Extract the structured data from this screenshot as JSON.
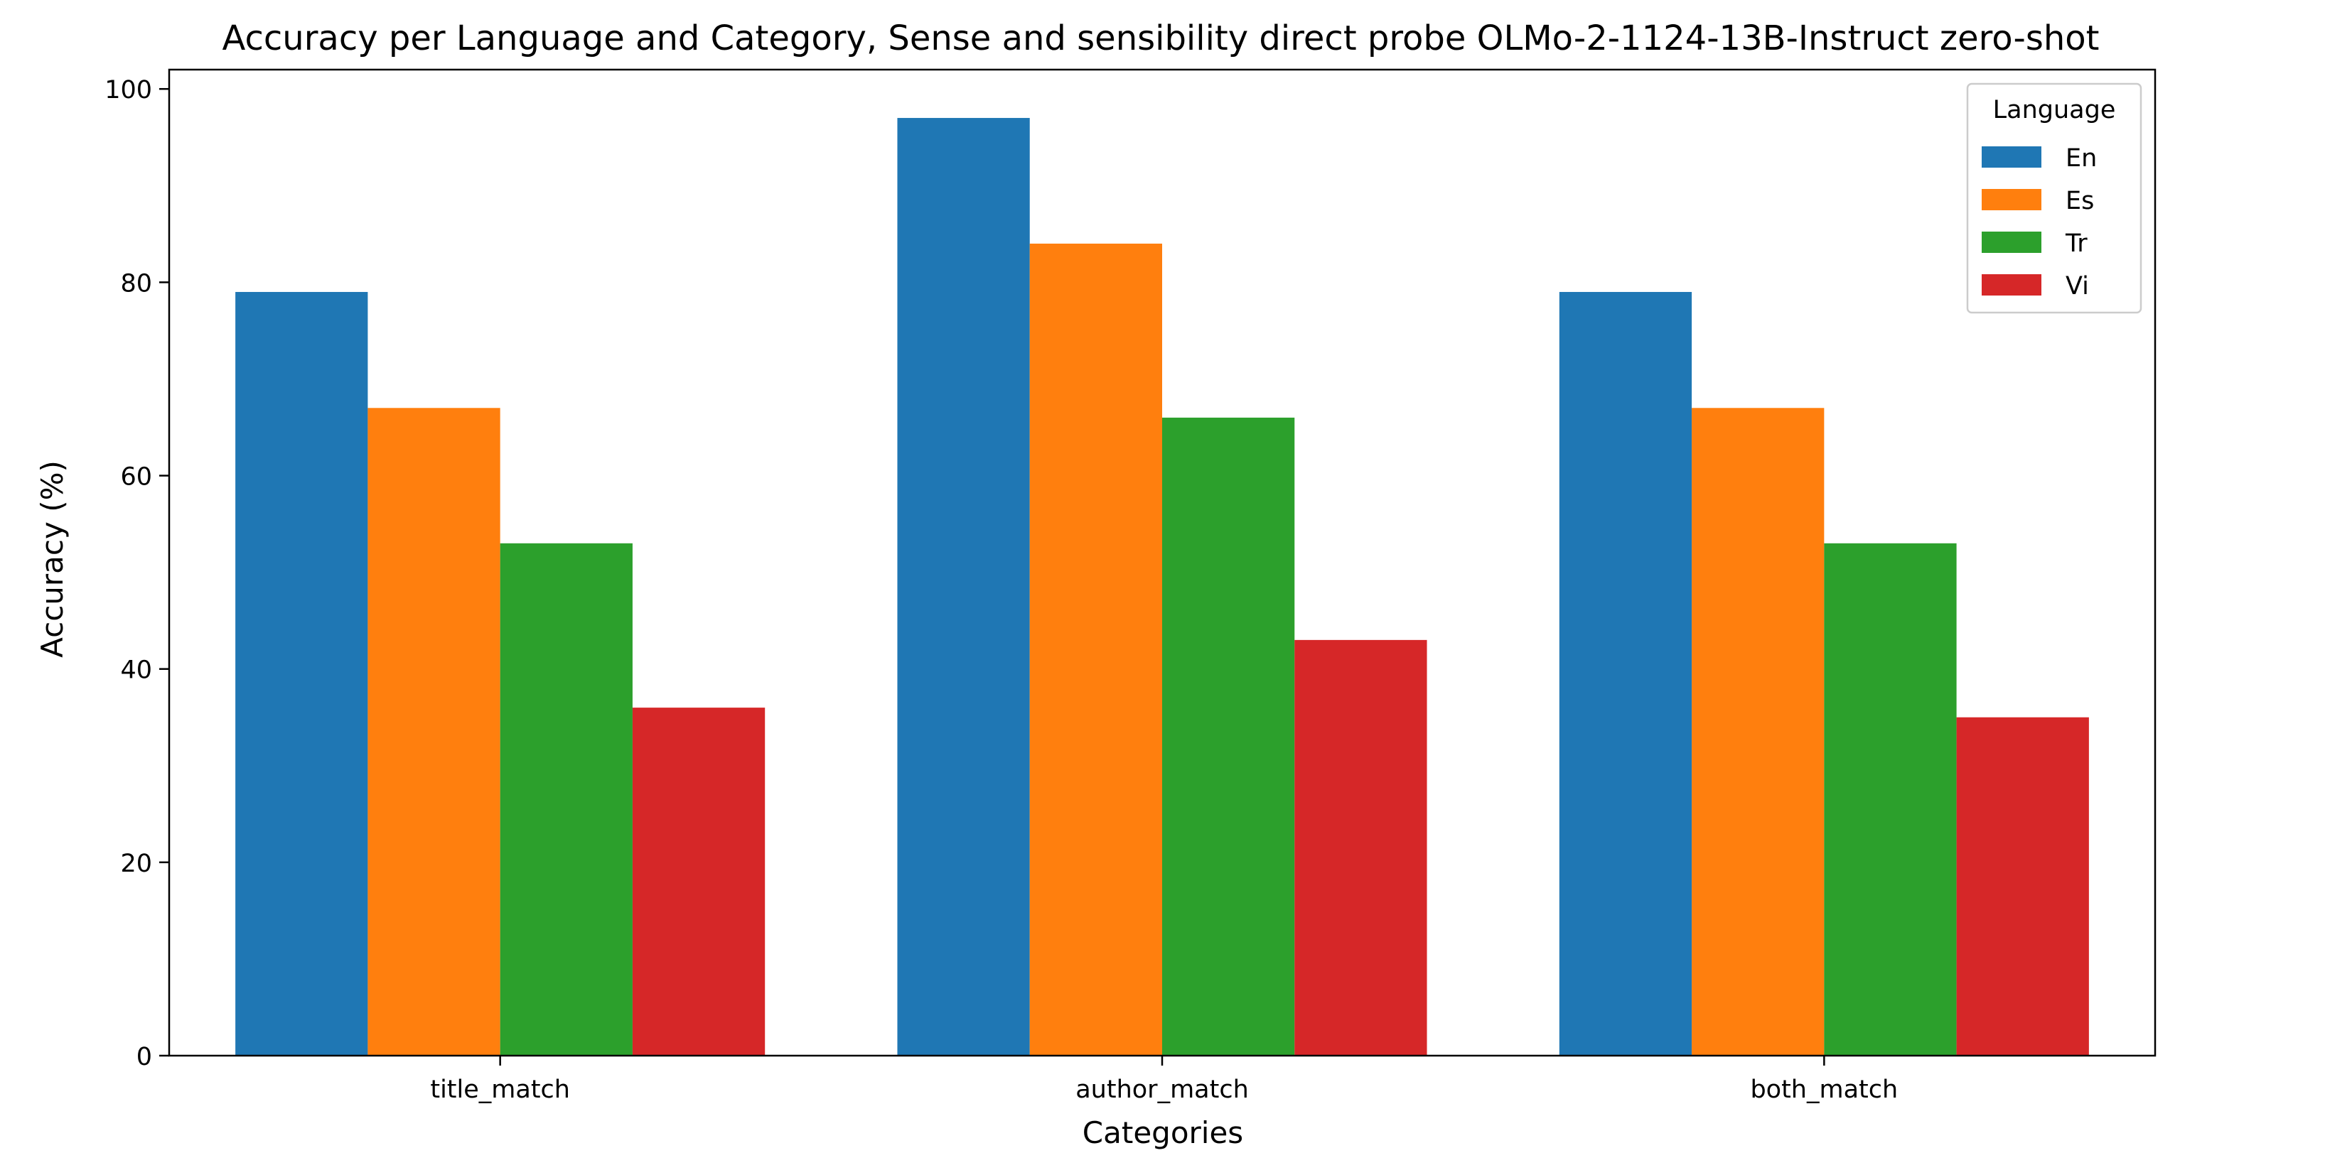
{
  "chart_data": {
    "type": "bar",
    "title": "Accuracy per Language and Category, Sense and sensibility direct probe OLMo-2-1124-13B-Instruct zero-shot",
    "xlabel": "Categories",
    "ylabel": "Accuracy (%)",
    "ylim": [
      0,
      102
    ],
    "yticks": [
      0,
      20,
      40,
      60,
      80,
      100
    ],
    "grid": false,
    "categories": [
      "title_match",
      "author_match",
      "both_match"
    ],
    "legend": {
      "title": "Language",
      "placement": "top-right"
    },
    "series": [
      {
        "name": "En",
        "color": "#1f77b4",
        "values": [
          79,
          97,
          79
        ]
      },
      {
        "name": "Es",
        "color": "#ff7f0e",
        "values": [
          67,
          84,
          67
        ]
      },
      {
        "name": "Tr",
        "color": "#2ca02c",
        "values": [
          53,
          66,
          53
        ]
      },
      {
        "name": "Vi",
        "color": "#d62728",
        "values": [
          36,
          43,
          35
        ]
      }
    ]
  }
}
